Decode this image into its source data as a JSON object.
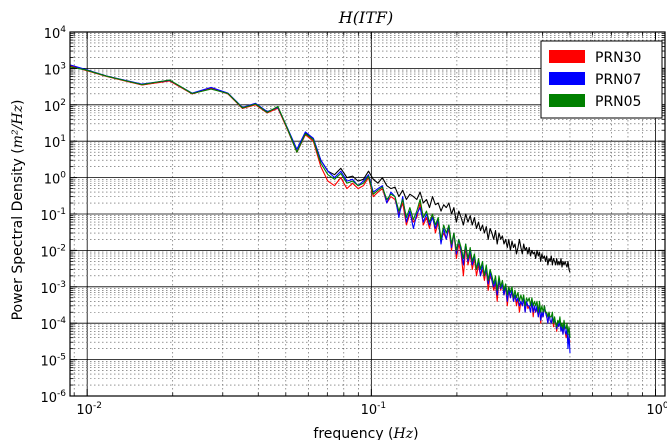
{
  "chart_data": {
    "type": "line",
    "title": "H(ITF)",
    "xlabel": "frequency",
    "xlabel_unit": "Hz",
    "ylabel": "Power Spectral Density",
    "ylabel_unit": "m²/Hz",
    "x_scale": "log",
    "y_scale": "log",
    "xlim": [
      0.0087,
      1.08
    ],
    "ylim": [
      1e-06,
      10000
    ],
    "x_ticks": [
      {
        "base": "10",
        "exp": "-2"
      },
      {
        "base": "10",
        "exp": "-1"
      },
      {
        "base": "10",
        "exp": "0"
      }
    ],
    "y_ticks": [
      {
        "base": "10",
        "exp": "4"
      },
      {
        "base": "10",
        "exp": "3"
      },
      {
        "base": "10",
        "exp": "2"
      },
      {
        "base": "10",
        "exp": "1"
      },
      {
        "base": "10",
        "exp": "0"
      },
      {
        "base": "10",
        "exp": "-1"
      },
      {
        "base": "10",
        "exp": "-2"
      },
      {
        "base": "10",
        "exp": "-3"
      },
      {
        "base": "10",
        "exp": "-4"
      },
      {
        "base": "10",
        "exp": "-5"
      },
      {
        "base": "10",
        "exp": "-6"
      }
    ],
    "grid": true,
    "legend_position": "top-right",
    "legend": [
      "PRN30",
      "PRN07",
      "PRN05"
    ],
    "series": [
      {
        "name": "PRN30",
        "color": "#ff0000",
        "x": [
          0.0087,
          0.0098,
          0.0117,
          0.0156,
          0.0195,
          0.0234,
          0.0273,
          0.0313,
          0.0352,
          0.0391,
          0.043,
          0.0469,
          0.0508,
          0.0547,
          0.0586,
          0.0625,
          0.0664,
          0.0703,
          0.0742,
          0.0781,
          0.082,
          0.0859,
          0.0898,
          0.0938,
          0.0977,
          0.1016,
          0.1055,
          0.1094,
          0.1133,
          0.1172,
          0.1211,
          0.125,
          0.1289,
          0.1328,
          0.1367,
          0.1406,
          0.1445,
          0.1484,
          0.1523,
          0.1563,
          0.1602,
          0.1641,
          0.168,
          0.1719,
          0.1758,
          0.1797,
          0.1836,
          0.1875,
          0.1914,
          0.1953,
          0.1992,
          0.2031,
          0.207,
          0.2109,
          0.2148,
          0.2188,
          0.2227,
          0.2266,
          0.2305,
          0.2344,
          0.2383,
          0.2422,
          0.2461,
          0.25,
          0.2539,
          0.2578,
          0.2617,
          0.2656,
          0.2695,
          0.2734,
          0.2773,
          0.2813,
          0.2852,
          0.2891,
          0.293,
          0.2969,
          0.3008,
          0.3047,
          0.3086,
          0.3125,
          0.3164,
          0.3203,
          0.3242,
          0.3281,
          0.332,
          0.3359,
          0.3398,
          0.3438,
          0.3477,
          0.3516,
          0.3555,
          0.3594,
          0.3633,
          0.3672,
          0.3711,
          0.375,
          0.3789,
          0.3828,
          0.3867,
          0.3906,
          0.3945,
          0.3984,
          0.4023,
          0.4063,
          0.4102,
          0.4141,
          0.418,
          0.4219,
          0.4258,
          0.4297,
          0.4336,
          0.4375,
          0.4414,
          0.4453,
          0.4492,
          0.4531,
          0.457,
          0.4609,
          0.4648,
          0.4688,
          0.4727,
          0.4766,
          0.4805,
          0.4844,
          0.4883,
          0.4922,
          0.4961,
          0.5
        ],
        "y": [
          1200,
          900,
          600,
          350,
          450,
          200,
          280,
          200,
          80,
          100,
          60,
          80,
          20,
          5,
          15,
          10,
          2,
          0.8,
          0.6,
          1.0,
          0.5,
          0.7,
          0.5,
          0.6,
          1.0,
          0.3,
          0.4,
          0.5,
          0.2,
          0.3,
          0.25,
          0.1,
          0.2,
          0.05,
          0.1,
          0.06,
          0.08,
          0.2,
          0.05,
          0.08,
          0.04,
          0.1,
          0.03,
          0.06,
          0.02,
          0.03,
          0.02,
          0.04,
          0.01,
          0.03,
          0.006,
          0.015,
          0.008,
          0.002,
          0.012,
          0.004,
          0.008,
          0.003,
          0.006,
          0.002,
          0.004,
          0.002,
          0.003,
          0.0015,
          0.003,
          0.0008,
          0.002,
          0.0015,
          0.0008,
          0.0012,
          0.0004,
          0.0015,
          0.0008,
          0.0012,
          0.0006,
          0.001,
          0.0003,
          0.0008,
          0.0005,
          0.0007,
          0.0004,
          0.0006,
          0.0003,
          0.0005,
          0.0002,
          0.0004,
          0.0003,
          0.0005,
          0.0002,
          0.0004,
          0.00025,
          0.0003,
          0.0002,
          0.0004,
          0.00015,
          0.0003,
          0.0002,
          0.00025,
          0.00015,
          0.0003,
          0.0001,
          0.0002,
          0.00015,
          0.0003,
          0.0002,
          0.00015,
          0.0001,
          0.0002,
          0.00012,
          0.0001,
          0.00015,
          8e-05,
          0.00012,
          0.0001,
          6e-05,
          0.0001,
          8e-05,
          0.00012,
          6e-05,
          8e-05,
          5e-05,
          0.0001,
          6e-05,
          4e-05,
          6e-05,
          3e-05,
          4e-05,
          3e-05
        ]
      },
      {
        "name": "PRN07",
        "color": "#0000ff",
        "x": [
          0.0087,
          0.0098,
          0.0117,
          0.0156,
          0.0195,
          0.0234,
          0.0273,
          0.0313,
          0.0352,
          0.0391,
          0.043,
          0.0469,
          0.0508,
          0.0547,
          0.0586,
          0.0625,
          0.0664,
          0.0703,
          0.0742,
          0.0781,
          0.082,
          0.0859,
          0.0898,
          0.0938,
          0.0977,
          0.1016,
          0.1055,
          0.1094,
          0.1133,
          0.1172,
          0.1211,
          0.125,
          0.1289,
          0.1328,
          0.1367,
          0.1406,
          0.1445,
          0.1484,
          0.1523,
          0.1563,
          0.1602,
          0.1641,
          0.168,
          0.1719,
          0.1758,
          0.1797,
          0.1836,
          0.1875,
          0.1914,
          0.1953,
          0.1992,
          0.2031,
          0.207,
          0.2109,
          0.2148,
          0.2188,
          0.2227,
          0.2266,
          0.2305,
          0.2344,
          0.2383,
          0.2422,
          0.2461,
          0.25,
          0.2539,
          0.2578,
          0.2617,
          0.2656,
          0.2695,
          0.2734,
          0.2773,
          0.2813,
          0.2852,
          0.2891,
          0.293,
          0.2969,
          0.3008,
          0.3047,
          0.3086,
          0.3125,
          0.3164,
          0.3203,
          0.3242,
          0.3281,
          0.332,
          0.3359,
          0.3398,
          0.3438,
          0.3477,
          0.3516,
          0.3555,
          0.3594,
          0.3633,
          0.3672,
          0.3711,
          0.375,
          0.3789,
          0.3828,
          0.3867,
          0.3906,
          0.3945,
          0.3984,
          0.4023,
          0.4063,
          0.4102,
          0.4141,
          0.418,
          0.4219,
          0.4258,
          0.4297,
          0.4336,
          0.4375,
          0.4414,
          0.4453,
          0.4492,
          0.4531,
          0.457,
          0.4609,
          0.4648,
          0.4688,
          0.4727,
          0.4766,
          0.4805,
          0.4844,
          0.4883,
          0.4922,
          0.4961,
          0.5
        ],
        "y": [
          1250,
          950,
          620,
          370,
          470,
          210,
          300,
          210,
          85,
          110,
          65,
          85,
          22,
          6,
          18,
          12,
          3,
          1.5,
          1.0,
          1.5,
          0.8,
          0.9,
          0.6,
          0.8,
          1.2,
          0.4,
          0.5,
          0.6,
          0.2,
          0.4,
          0.3,
          0.08,
          0.3,
          0.06,
          0.12,
          0.04,
          0.1,
          0.15,
          0.06,
          0.1,
          0.05,
          0.08,
          0.04,
          0.07,
          0.015,
          0.04,
          0.02,
          0.05,
          0.012,
          0.03,
          0.008,
          0.02,
          0.01,
          0.004,
          0.015,
          0.005,
          0.01,
          0.004,
          0.007,
          0.003,
          0.005,
          0.002,
          0.004,
          0.002,
          0.003,
          0.0012,
          0.0025,
          0.0015,
          0.001,
          0.0015,
          0.0006,
          0.0015,
          0.0009,
          0.0012,
          0.0006,
          0.0011,
          0.0004,
          0.0009,
          0.0005,
          0.0008,
          0.0004,
          0.0006,
          0.0004,
          0.0005,
          0.0003,
          0.0004,
          0.0003,
          0.0005,
          0.0002,
          0.0004,
          0.0003,
          0.0003,
          0.0002,
          0.0004,
          0.0002,
          0.0003,
          0.0002,
          0.0003,
          0.00015,
          0.0003,
          0.00012,
          0.0002,
          0.00015,
          0.0003,
          0.0002,
          0.00015,
          0.0001,
          0.0002,
          0.00012,
          0.0001,
          0.00015,
          0.0001,
          0.00012,
          0.0001,
          7e-05,
          0.0001,
          8e-05,
          0.00012,
          6e-05,
          8e-05,
          5e-05,
          0.0001,
          6e-05,
          5e-05,
          7e-05,
          2e-05,
          5e-05,
          1.5e-05
        ]
      },
      {
        "name": "PRN05",
        "color": "#008000",
        "x": [
          0.0087,
          0.0098,
          0.0117,
          0.0156,
          0.0195,
          0.0234,
          0.0273,
          0.0313,
          0.0352,
          0.0391,
          0.043,
          0.0469,
          0.0508,
          0.0547,
          0.0586,
          0.0625,
          0.0664,
          0.0703,
          0.0742,
          0.0781,
          0.082,
          0.0859,
          0.0898,
          0.0938,
          0.0977,
          0.1016,
          0.1055,
          0.1094,
          0.1133,
          0.1172,
          0.1211,
          0.125,
          0.1289,
          0.1328,
          0.1367,
          0.1406,
          0.1445,
          0.1484,
          0.1523,
          0.1563,
          0.1602,
          0.1641,
          0.168,
          0.1719,
          0.1758,
          0.1797,
          0.1836,
          0.1875,
          0.1914,
          0.1953,
          0.1992,
          0.2031,
          0.207,
          0.2109,
          0.2148,
          0.2188,
          0.2227,
          0.2266,
          0.2305,
          0.2344,
          0.2383,
          0.2422,
          0.2461,
          0.25,
          0.2539,
          0.2578,
          0.2617,
          0.2656,
          0.2695,
          0.2734,
          0.2773,
          0.2813,
          0.2852,
          0.2891,
          0.293,
          0.2969,
          0.3008,
          0.3047,
          0.3086,
          0.3125,
          0.3164,
          0.3203,
          0.3242,
          0.3281,
          0.332,
          0.3359,
          0.3398,
          0.3438,
          0.3477,
          0.3516,
          0.3555,
          0.3594,
          0.3633,
          0.3672,
          0.3711,
          0.375,
          0.3789,
          0.3828,
          0.3867,
          0.3906,
          0.3945,
          0.3984,
          0.4023,
          0.4063,
          0.4102,
          0.4141,
          0.418,
          0.4219,
          0.4258,
          0.4297,
          0.4336,
          0.4375,
          0.4414,
          0.4453,
          0.4492,
          0.4531,
          0.457,
          0.4609,
          0.4648,
          0.4688,
          0.4727,
          0.4766,
          0.4805,
          0.4844,
          0.4883,
          0.4922,
          0.4961,
          0.5
        ],
        "y": [
          1100,
          920,
          610,
          360,
          480,
          205,
          270,
          205,
          82,
          105,
          62,
          90,
          21,
          5,
          16,
          11,
          2.5,
          1.2,
          0.9,
          1.3,
          0.7,
          0.8,
          0.6,
          0.7,
          1.1,
          0.35,
          0.45,
          0.55,
          0.25,
          0.35,
          0.3,
          0.12,
          0.25,
          0.08,
          0.15,
          0.07,
          0.12,
          0.25,
          0.08,
          0.12,
          0.06,
          0.1,
          0.05,
          0.08,
          0.02,
          0.05,
          0.03,
          0.05,
          0.015,
          0.03,
          0.01,
          0.02,
          0.012,
          0.006,
          0.015,
          0.006,
          0.012,
          0.005,
          0.008,
          0.003,
          0.006,
          0.003,
          0.005,
          0.002,
          0.004,
          0.0015,
          0.003,
          0.002,
          0.0012,
          0.002,
          0.0008,
          0.002,
          0.001,
          0.0015,
          0.0008,
          0.0012,
          0.0006,
          0.001,
          0.0007,
          0.001,
          0.0005,
          0.0008,
          0.0005,
          0.0007,
          0.0004,
          0.0006,
          0.0004,
          0.0006,
          0.0003,
          0.0005,
          0.0004,
          0.0005,
          0.0003,
          0.0005,
          0.0003,
          0.0004,
          0.0003,
          0.0004,
          0.0002,
          0.0004,
          0.0002,
          0.0003,
          0.0002,
          0.0003,
          0.0002,
          0.0002,
          0.00015,
          0.0002,
          0.00015,
          0.00015,
          0.0002,
          0.0001,
          0.00015,
          0.0001,
          8e-05,
          0.00012,
          0.0001,
          0.00015,
          8e-05,
          0.0001,
          7e-05,
          0.00012,
          8e-05,
          7e-05,
          0.0001,
          5e-05,
          8e-05,
          4e-05
        ]
      },
      {
        "name": "",
        "color": "#000000",
        "x": [
          0.0087,
          0.0098,
          0.0117,
          0.0156,
          0.0195,
          0.0234,
          0.0273,
          0.0313,
          0.0352,
          0.0391,
          0.043,
          0.0469,
          0.0508,
          0.0547,
          0.0586,
          0.0625,
          0.0664,
          0.0703,
          0.0742,
          0.0781,
          0.082,
          0.0859,
          0.0898,
          0.0938,
          0.0977,
          0.1016,
          0.1055,
          0.1094,
          0.1133,
          0.1172,
          0.1211,
          0.125,
          0.1289,
          0.1328,
          0.1367,
          0.1406,
          0.1445,
          0.1484,
          0.1523,
          0.1563,
          0.1602,
          0.1641,
          0.168,
          0.1719,
          0.1758,
          0.1797,
          0.1836,
          0.1875,
          0.1914,
          0.1953,
          0.1992,
          0.2031,
          0.207,
          0.2109,
          0.2148,
          0.2188,
          0.2227,
          0.2266,
          0.2305,
          0.2344,
          0.2383,
          0.2422,
          0.2461,
          0.25,
          0.2539,
          0.2578,
          0.2617,
          0.2656,
          0.2695,
          0.2734,
          0.2773,
          0.2813,
          0.2852,
          0.2891,
          0.293,
          0.2969,
          0.3008,
          0.3047,
          0.3086,
          0.3125,
          0.3164,
          0.3203,
          0.3242,
          0.3281,
          0.332,
          0.3359,
          0.3398,
          0.3438,
          0.3477,
          0.3516,
          0.3555,
          0.3594,
          0.3633,
          0.3672,
          0.3711,
          0.375,
          0.3789,
          0.3828,
          0.3867,
          0.3906,
          0.3945,
          0.3984,
          0.4023,
          0.4063,
          0.4102,
          0.4141,
          0.418,
          0.4219,
          0.4258,
          0.4297,
          0.4336,
          0.4375,
          0.4414,
          0.4453,
          0.4492,
          0.4531,
          0.457,
          0.4609,
          0.4648,
          0.4688,
          0.4727,
          0.4766,
          0.4805,
          0.4844,
          0.4883,
          0.4922,
          0.4961,
          0.5
        ],
        "y": [
          1150,
          930,
          615,
          355,
          460,
          200,
          290,
          200,
          80,
          105,
          60,
          85,
          20,
          5,
          17,
          12,
          3,
          1.5,
          1.2,
          1.8,
          1.0,
          1.1,
          0.8,
          0.9,
          1.5,
          0.9,
          0.7,
          1.0,
          0.6,
          0.5,
          0.55,
          0.3,
          0.45,
          0.25,
          0.35,
          0.3,
          0.25,
          0.4,
          0.2,
          0.25,
          0.15,
          0.3,
          0.18,
          0.2,
          0.12,
          0.18,
          0.15,
          0.2,
          0.1,
          0.15,
          0.06,
          0.12,
          0.08,
          0.05,
          0.1,
          0.06,
          0.09,
          0.05,
          0.08,
          0.04,
          0.06,
          0.035,
          0.05,
          0.03,
          0.045,
          0.02,
          0.04,
          0.03,
          0.02,
          0.035,
          0.015,
          0.03,
          0.02,
          0.025,
          0.015,
          0.02,
          0.012,
          0.02,
          0.01,
          0.018,
          0.012,
          0.015,
          0.008,
          0.012,
          0.02,
          0.012,
          0.008,
          0.015,
          0.01,
          0.012,
          0.008,
          0.012,
          0.007,
          0.01,
          0.008,
          0.009,
          0.006,
          0.01,
          0.007,
          0.009,
          0.005,
          0.008,
          0.006,
          0.007,
          0.005,
          0.007,
          0.004,
          0.006,
          0.005,
          0.007,
          0.004,
          0.006,
          0.005,
          0.004,
          0.006,
          0.004,
          0.005,
          0.004,
          0.006,
          0.0035,
          0.005,
          0.004,
          0.005,
          0.004,
          0.0035,
          0.005,
          0.003,
          0.0025
        ]
      }
    ]
  }
}
